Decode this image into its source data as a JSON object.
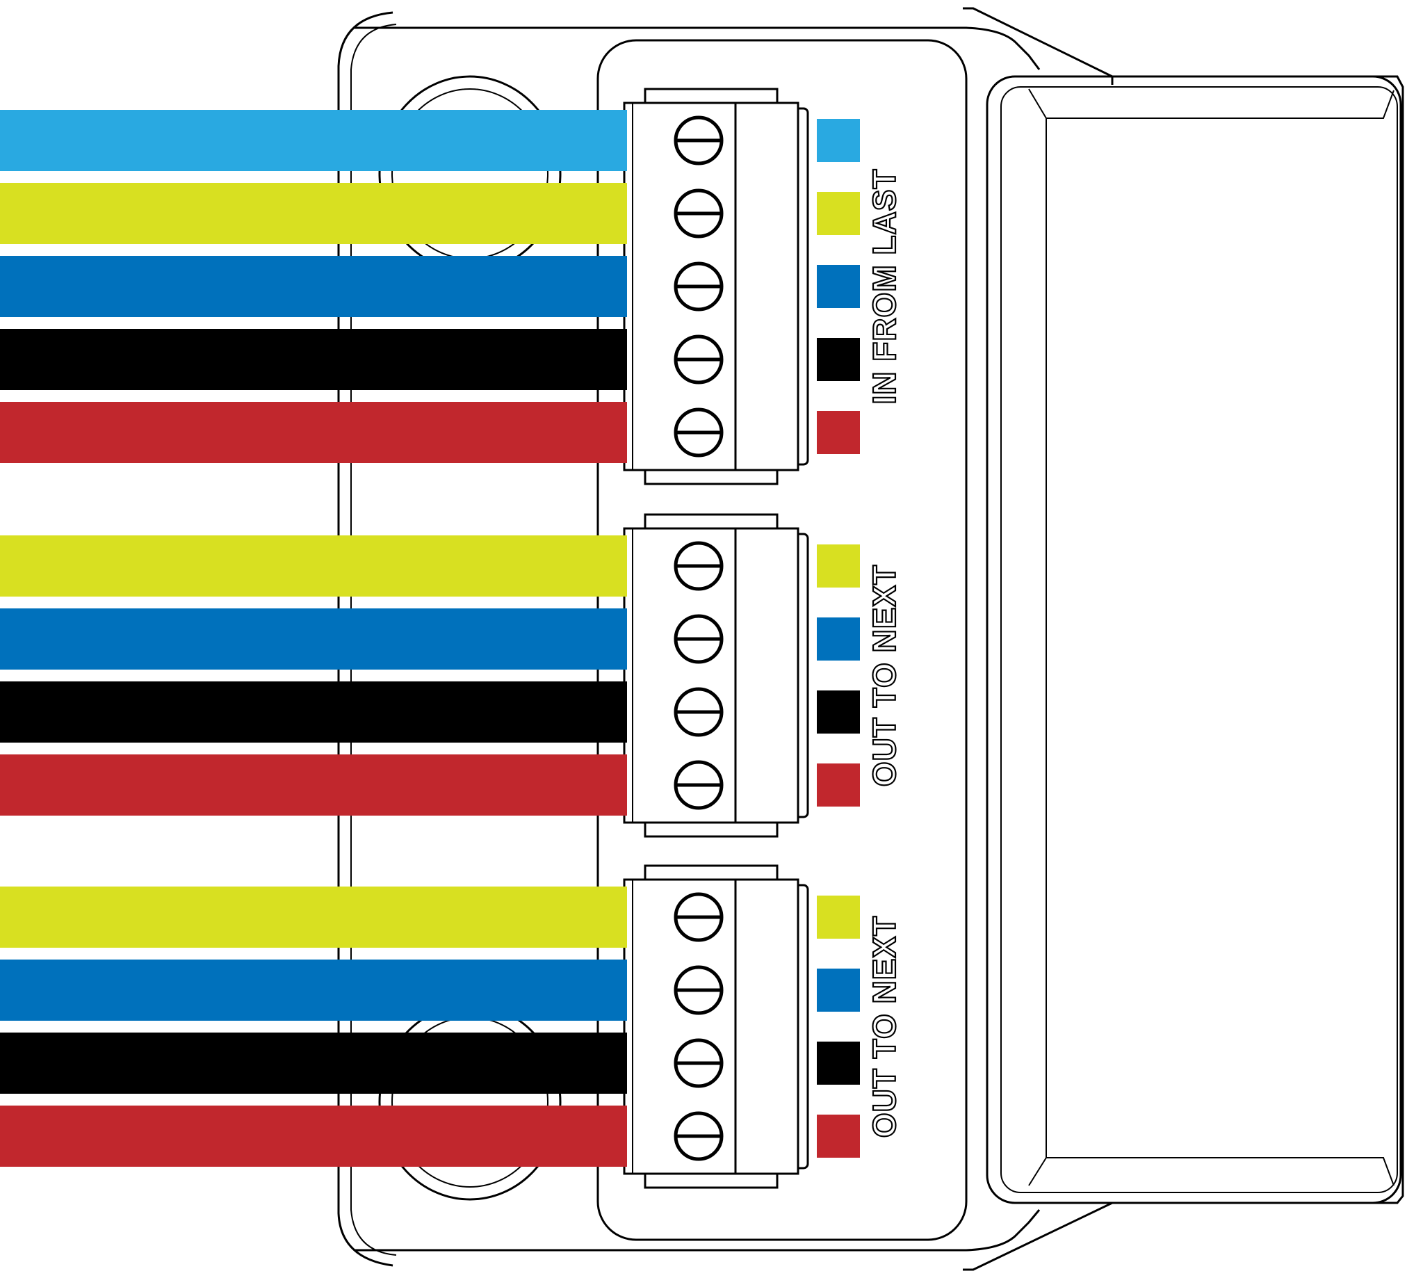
{
  "colors": {
    "cyan": "#29A9E1",
    "yellow": "#D8E021",
    "blue": "#0071BC",
    "black": "#000000",
    "red": "#C1272D"
  },
  "terminal_blocks": [
    {
      "label": "IN FROM LAST",
      "wires": [
        "cyan",
        "yellow",
        "blue",
        "black",
        "red"
      ]
    },
    {
      "label": "OUT TO NEXT",
      "wires": [
        "yellow",
        "blue",
        "black",
        "red"
      ]
    },
    {
      "label": "OUT TO NEXT",
      "wires": [
        "yellow",
        "blue",
        "black",
        "red"
      ]
    }
  ],
  "icons": {
    "screw": "screw-terminal-icon",
    "swatch": "wire-color-swatch"
  }
}
